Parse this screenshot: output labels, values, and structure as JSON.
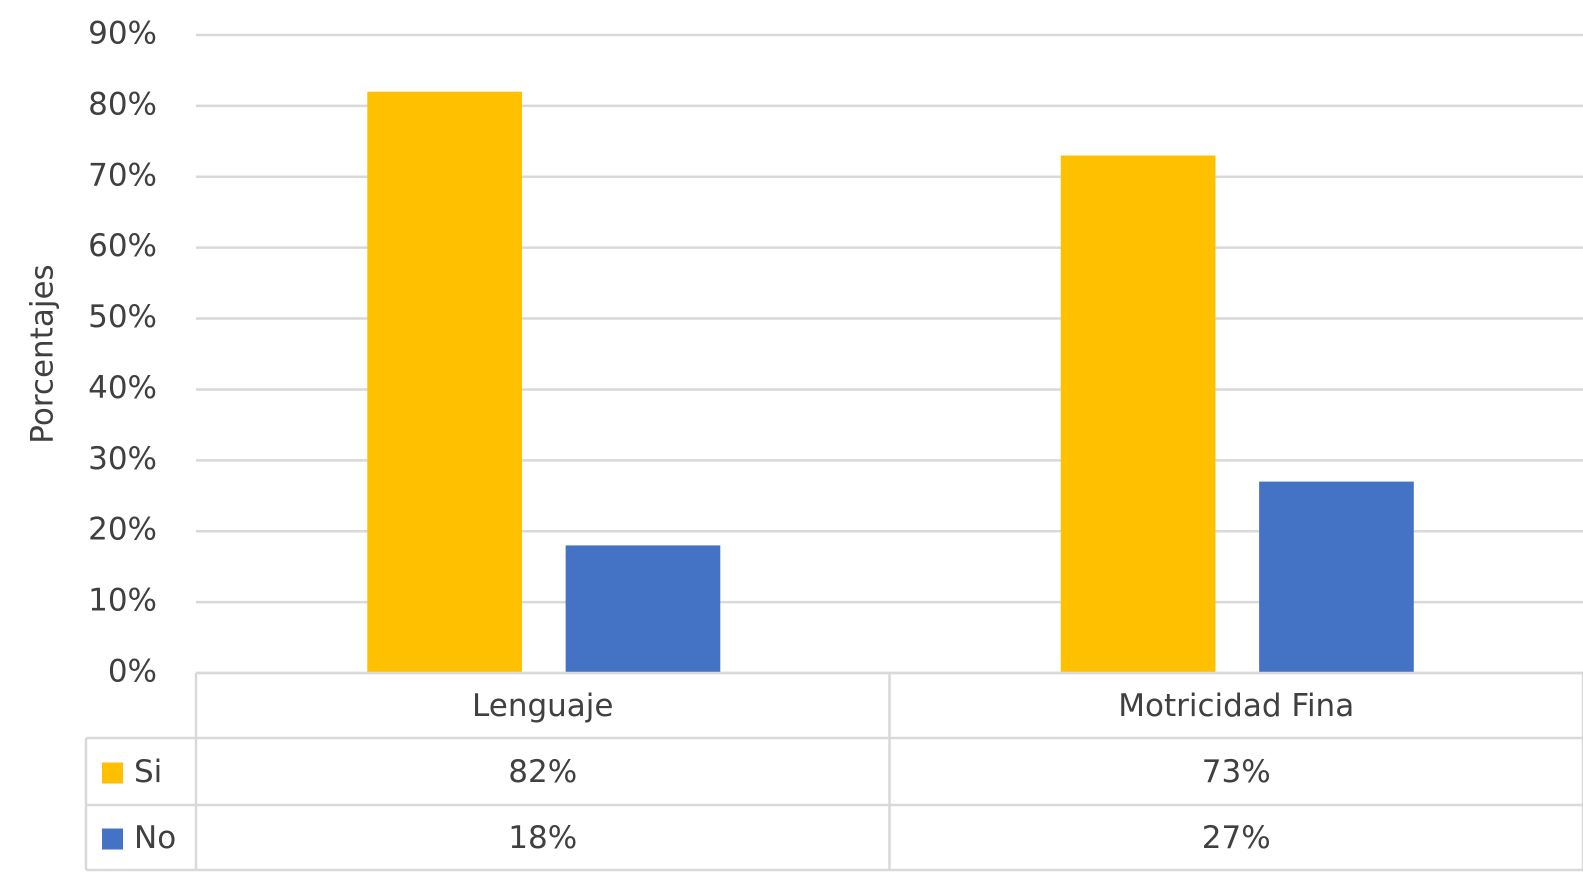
{
  "chart_data": {
    "type": "bar",
    "y_label": "Porcentajes",
    "categories": [
      "Lenguaje",
      "Motricidad Fina"
    ],
    "series": [
      {
        "name": "Si",
        "color": "#ffc000",
        "values": [
          82,
          73
        ],
        "value_labels": [
          "82%",
          "73%"
        ]
      },
      {
        "name": "No",
        "color": "#4472c4",
        "values": [
          18,
          27
        ],
        "value_labels": [
          "18%",
          "27%"
        ]
      }
    ],
    "ylim": [
      0,
      90
    ],
    "yticks": [
      {
        "value": 0,
        "label": "0%"
      },
      {
        "value": 10,
        "label": "10%"
      },
      {
        "value": 20,
        "label": "20%"
      },
      {
        "value": 30,
        "label": "30%"
      },
      {
        "value": 40,
        "label": "40%"
      },
      {
        "value": 50,
        "label": "50%"
      },
      {
        "value": 60,
        "label": "60%"
      },
      {
        "value": 70,
        "label": "70%"
      },
      {
        "value": 80,
        "label": "80%"
      },
      {
        "value": 90,
        "label": "90%"
      }
    ],
    "grid": true,
    "data_table": true
  }
}
